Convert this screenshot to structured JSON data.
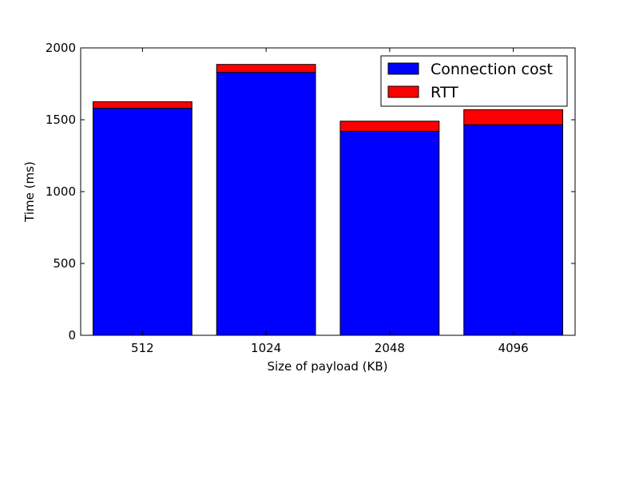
{
  "chart_data": {
    "type": "bar",
    "stacked": true,
    "xlabel": "Size of payload (KB)",
    "ylabel": "Time (ms)",
    "ylim": [
      0,
      2000
    ],
    "yticks": [
      0,
      500,
      1000,
      1500,
      2000
    ],
    "categories": [
      "512",
      "1024",
      "2048",
      "4096"
    ],
    "series": [
      {
        "name": "Connection cost",
        "color": "#0000ff",
        "values": [
          1580,
          1830,
          1420,
          1465
        ]
      },
      {
        "name": "RTT",
        "color": "#ff0000",
        "values": [
          45,
          55,
          70,
          105
        ]
      }
    ],
    "legend_position": "top-right",
    "grid": false
  }
}
